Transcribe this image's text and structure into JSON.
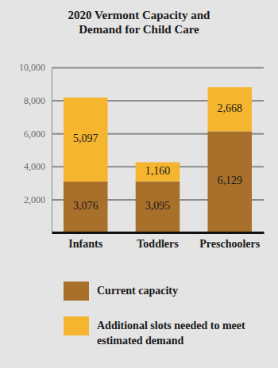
{
  "chart_data": {
    "type": "bar",
    "title": "2020 Vermont Capacity and Demand for Child Care",
    "categories": [
      "Infants",
      "Toddlers",
      "Preschoolers"
    ],
    "series": [
      {
        "name": "Current capacity",
        "color": "#a8702b",
        "values": [
          3076,
          3095,
          6129
        ],
        "value_labels": [
          "3,076",
          "3,095",
          "6,129"
        ]
      },
      {
        "name": "Additional slots needed to meet estimated demand",
        "color": "#f5b52f",
        "values": [
          5097,
          1160,
          2668
        ],
        "value_labels": [
          "5,097",
          "1,160",
          "2,668"
        ]
      }
    ],
    "ylim": [
      0,
      10000
    ],
    "yticks": [
      {
        "value": 2000,
        "label": "2,000"
      },
      {
        "value": 4000,
        "label": "4,000"
      },
      {
        "value": 6000,
        "label": "6,000"
      },
      {
        "value": 8000,
        "label": "8,000"
      },
      {
        "value": 10000,
        "label": "10,000"
      }
    ],
    "stacked": true,
    "grid": true,
    "data_labels": true,
    "legend": "bottom"
  }
}
